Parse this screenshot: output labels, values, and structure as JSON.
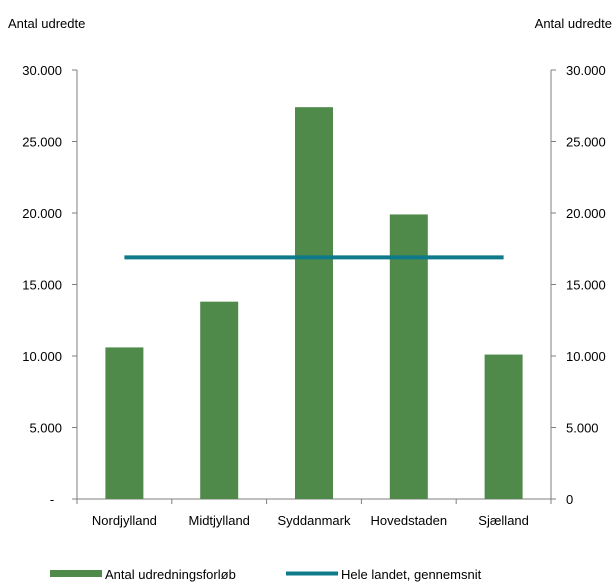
{
  "colors": {
    "bar": "#4f8a4a",
    "line": "#0e7a8a",
    "axis": "#7f7f7f",
    "text": "#000000",
    "background": "#ffffff"
  },
  "chart_data": {
    "type": "bar",
    "title": "",
    "ylabel_left": "Antal udredte",
    "ylabel_right": "Antal udredte",
    "categories": [
      "Nordjylland",
      "Midtjylland",
      "Syddanmark",
      "Hovedstaden",
      "Sjælland"
    ],
    "ylim": [
      0,
      30000
    ],
    "left_ticks": [
      {
        "value": 0,
        "label": "-"
      },
      {
        "value": 5000,
        "label": "5.000"
      },
      {
        "value": 10000,
        "label": "10.000"
      },
      {
        "value": 15000,
        "label": "15.000"
      },
      {
        "value": 20000,
        "label": "20.000"
      },
      {
        "value": 25000,
        "label": "25.000"
      },
      {
        "value": 30000,
        "label": "30.000"
      }
    ],
    "right_ticks": [
      {
        "value": 0,
        "label": "0"
      },
      {
        "value": 5000,
        "label": "5.000"
      },
      {
        "value": 10000,
        "label": "10.000"
      },
      {
        "value": 15000,
        "label": "15.000"
      },
      {
        "value": 20000,
        "label": "20.000"
      },
      {
        "value": 25000,
        "label": "25.000"
      },
      {
        "value": 30000,
        "label": "30.000"
      }
    ],
    "series": [
      {
        "name": "Antal udredningsforløb",
        "type": "bar",
        "values": [
          10600,
          13800,
          27400,
          19900,
          10100
        ]
      },
      {
        "name": "Hele landet, gennemsnit",
        "type": "line",
        "values": [
          16900,
          16900,
          16900,
          16900,
          16900
        ]
      }
    ],
    "grid": false,
    "legend": "bottom"
  }
}
